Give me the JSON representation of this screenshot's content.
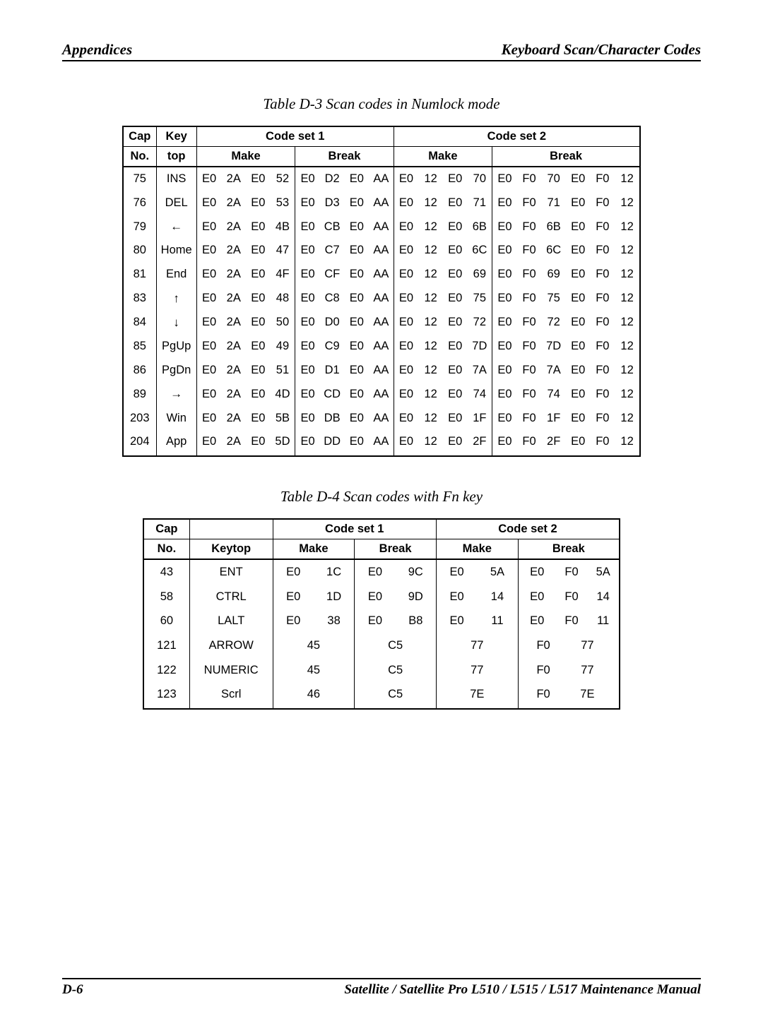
{
  "header": {
    "left": "Appendices",
    "right": "Keyboard Scan/Character Codes"
  },
  "footer": {
    "left": "D-6",
    "right": "Satellite / Satellite Pro L510 / L515 / L517  Maintenance Manual"
  },
  "table_d3": {
    "caption": "Table D-3  Scan codes in Numlock mode",
    "head": {
      "r1": [
        "Cap",
        "Key",
        "Code set 1",
        "Code set 2"
      ],
      "r2": [
        "No.",
        "top",
        "Make",
        "Break",
        "Make",
        "Break"
      ]
    },
    "rows": [
      [
        "75",
        "INS",
        "E0",
        "2A",
        "E0",
        "52",
        "E0",
        "D2",
        "E0",
        "AA",
        "E0",
        "12",
        "E0",
        "70",
        "E0",
        "F0",
        "70",
        "E0",
        "F0",
        "12"
      ],
      [
        "76",
        "DEL",
        "E0",
        "2A",
        "E0",
        "53",
        "E0",
        "D3",
        "E0",
        "AA",
        "E0",
        "12",
        "E0",
        "71",
        "E0",
        "F0",
        "71",
        "E0",
        "F0",
        "12"
      ],
      [
        "79",
        "←",
        "E0",
        "2A",
        "E0",
        "4B",
        "E0",
        "CB",
        "E0",
        "AA",
        "E0",
        "12",
        "E0",
        "6B",
        "E0",
        "F0",
        "6B",
        "E0",
        "F0",
        "12"
      ],
      [
        "80",
        "Home",
        "E0",
        "2A",
        "E0",
        "47",
        "E0",
        "C7",
        "E0",
        "AA",
        "E0",
        "12",
        "E0",
        "6C",
        "E0",
        "F0",
        "6C",
        "E0",
        "F0",
        "12"
      ],
      [
        "81",
        "End",
        "E0",
        "2A",
        "E0",
        "4F",
        "E0",
        "CF",
        "E0",
        "AA",
        "E0",
        "12",
        "E0",
        "69",
        "E0",
        "F0",
        "69",
        "E0",
        "F0",
        "12"
      ],
      [
        "83",
        "↑",
        "E0",
        "2A",
        "E0",
        "48",
        "E0",
        "C8",
        "E0",
        "AA",
        "E0",
        "12",
        "E0",
        "75",
        "E0",
        "F0",
        "75",
        "E0",
        "F0",
        "12"
      ],
      [
        "84",
        "↓",
        "E0",
        "2A",
        "E0",
        "50",
        "E0",
        "D0",
        "E0",
        "AA",
        "E0",
        "12",
        "E0",
        "72",
        "E0",
        "F0",
        "72",
        "E0",
        "F0",
        "12"
      ],
      [
        "85",
        "PgUp",
        "E0",
        "2A",
        "E0",
        "49",
        "E0",
        "C9",
        "E0",
        "AA",
        "E0",
        "12",
        "E0",
        "7D",
        "E0",
        "F0",
        "7D",
        "E0",
        "F0",
        "12"
      ],
      [
        "86",
        "PgDn",
        "E0",
        "2A",
        "E0",
        "51",
        "E0",
        "D1",
        "E0",
        "AA",
        "E0",
        "12",
        "E0",
        "7A",
        "E0",
        "F0",
        "7A",
        "E0",
        "F0",
        "12"
      ],
      [
        "89",
        "→",
        "E0",
        "2A",
        "E0",
        "4D",
        "E0",
        "CD",
        "E0",
        "AA",
        "E0",
        "12",
        "E0",
        "74",
        "E0",
        "F0",
        "74",
        "E0",
        "F0",
        "12"
      ],
      [
        "203",
        "Win",
        "E0",
        "2A",
        "E0",
        "5B",
        "E0",
        "DB",
        "E0",
        "AA",
        "E0",
        "12",
        "E0",
        "1F",
        "E0",
        "F0",
        "1F",
        "E0",
        "F0",
        "12"
      ],
      [
        "204",
        "App",
        "E0",
        "2A",
        "E0",
        "5D",
        "E0",
        "DD",
        "E0",
        "AA",
        "E0",
        "12",
        "E0",
        "2F",
        "E0",
        "F0",
        "2F",
        "E0",
        "F0",
        "12"
      ]
    ]
  },
  "table_d4": {
    "caption": "Table D-4  Scan codes with Fn key",
    "head": {
      "r1": [
        "Cap",
        "",
        "Code set 1",
        "Code set 2"
      ],
      "r2": [
        "No.",
        "Keytop",
        "Make",
        "Break",
        "Make",
        "Break"
      ]
    },
    "rows": [
      {
        "cap": "43",
        "key": "ENT",
        "m1": [
          "E0",
          "1C"
        ],
        "b1": [
          "E0",
          "9C"
        ],
        "m2": [
          "E0",
          "5A"
        ],
        "b2": [
          "E0",
          "F0",
          "5A"
        ]
      },
      {
        "cap": "58",
        "key": "CTRL",
        "m1": [
          "E0",
          "1D"
        ],
        "b1": [
          "E0",
          "9D"
        ],
        "m2": [
          "E0",
          "14"
        ],
        "b2": [
          "E0",
          "F0",
          "14"
        ]
      },
      {
        "cap": "60",
        "key": "LALT",
        "m1": [
          "E0",
          "38"
        ],
        "b1": [
          "E0",
          "B8"
        ],
        "m2": [
          "E0",
          "11"
        ],
        "b2": [
          "E0",
          "F0",
          "11"
        ]
      },
      {
        "cap": "121",
        "key": "ARROW",
        "m1": [
          "45"
        ],
        "b1": [
          "C5"
        ],
        "m2": [
          "77"
        ],
        "b2": [
          "F0",
          "77"
        ]
      },
      {
        "cap": "122",
        "key": "NUMERIC",
        "m1": [
          "45"
        ],
        "b1": [
          "C5"
        ],
        "m2": [
          "77"
        ],
        "b2": [
          "F0",
          "77"
        ]
      },
      {
        "cap": "123",
        "key": "Scrl",
        "m1": [
          "46"
        ],
        "b1": [
          "C5"
        ],
        "m2": [
          "7E"
        ],
        "b2": [
          "F0",
          "7E"
        ]
      }
    ]
  }
}
